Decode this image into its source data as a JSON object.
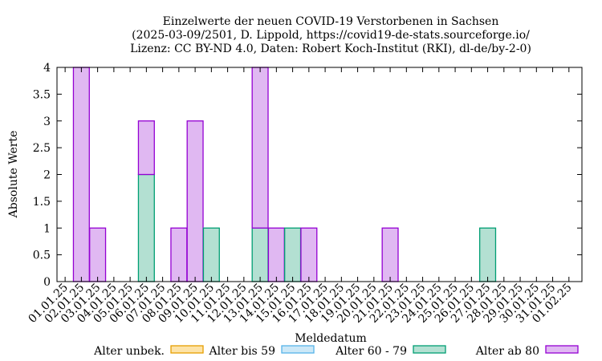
{
  "chart_data": {
    "type": "bar",
    "stacked": true,
    "title": [
      "Einzelwerte der neuen COVID-19 Verstorbenen in Sachsen",
      "(2025-03-09/2501, D. Lippold, https://covid19-de-stats.sourceforge.io/",
      "Lizenz: CC BY-ND 4.0, Daten: Robert Koch-Institut (RKI), dl-de/by-2-0)"
    ],
    "xlabel": "Meldedatum",
    "ylabel": "Absolute Werte",
    "ylim": [
      0,
      4
    ],
    "yticks": [
      "0",
      "0.5",
      "1",
      "1.5",
      "2",
      "2.5",
      "3",
      "3.5",
      "4"
    ],
    "categories": [
      "01.01.25",
      "02.01.25",
      "03.01.25",
      "04.01.25",
      "05.01.25",
      "06.01.25",
      "07.01.25",
      "08.01.25",
      "09.01.25",
      "10.01.25",
      "11.01.25",
      "12.01.25",
      "13.01.25",
      "14.01.25",
      "15.01.25",
      "16.01.25",
      "17.01.25",
      "18.01.25",
      "19.01.25",
      "20.01.25",
      "21.01.25",
      "22.01.25",
      "23.01.25",
      "24.01.25",
      "25.01.25",
      "26.01.25",
      "27.01.25",
      "28.01.25",
      "29.01.25",
      "30.01.25",
      "31.01.25",
      "01.02.25"
    ],
    "series": [
      {
        "name": "Alter unbek.",
        "fill": "#fde3a7",
        "stroke": "#e69f00",
        "values": [
          0,
          0,
          0,
          0,
          0,
          0,
          0,
          0,
          0,
          0,
          0,
          0,
          0,
          0,
          0,
          0,
          0,
          0,
          0,
          0,
          0,
          0,
          0,
          0,
          0,
          0,
          0,
          0,
          0,
          0,
          0,
          0
        ]
      },
      {
        "name": "Alter bis 59",
        "fill": "#cce8f7",
        "stroke": "#56b4e9",
        "values": [
          0,
          0,
          0,
          0,
          0,
          0,
          0,
          0,
          0,
          0,
          0,
          0,
          0,
          0,
          0,
          0,
          0,
          0,
          0,
          0,
          0,
          0,
          0,
          0,
          0,
          0,
          0,
          0,
          0,
          0,
          0,
          0
        ]
      },
      {
        "name": "Alter 60 - 79",
        "fill": "#b3e0d2",
        "stroke": "#009e73",
        "values": [
          0,
          0,
          0,
          0,
          0,
          2,
          0,
          0,
          0,
          1,
          0,
          0,
          1,
          0,
          1,
          0,
          0,
          0,
          0,
          0,
          0,
          0,
          0,
          0,
          0,
          0,
          1,
          0,
          0,
          0,
          0,
          0
        ]
      },
      {
        "name": "Alter ab 80",
        "fill": "#e0b8f2",
        "stroke": "#9400d3",
        "values": [
          0,
          4,
          1,
          0,
          0,
          1,
          0,
          1,
          3,
          0,
          0,
          0,
          3,
          1,
          0,
          1,
          0,
          0,
          0,
          0,
          1,
          0,
          0,
          0,
          0,
          0,
          0,
          0,
          0,
          0,
          0,
          0
        ]
      }
    ],
    "grid": false,
    "legend_position": "bottom"
  }
}
